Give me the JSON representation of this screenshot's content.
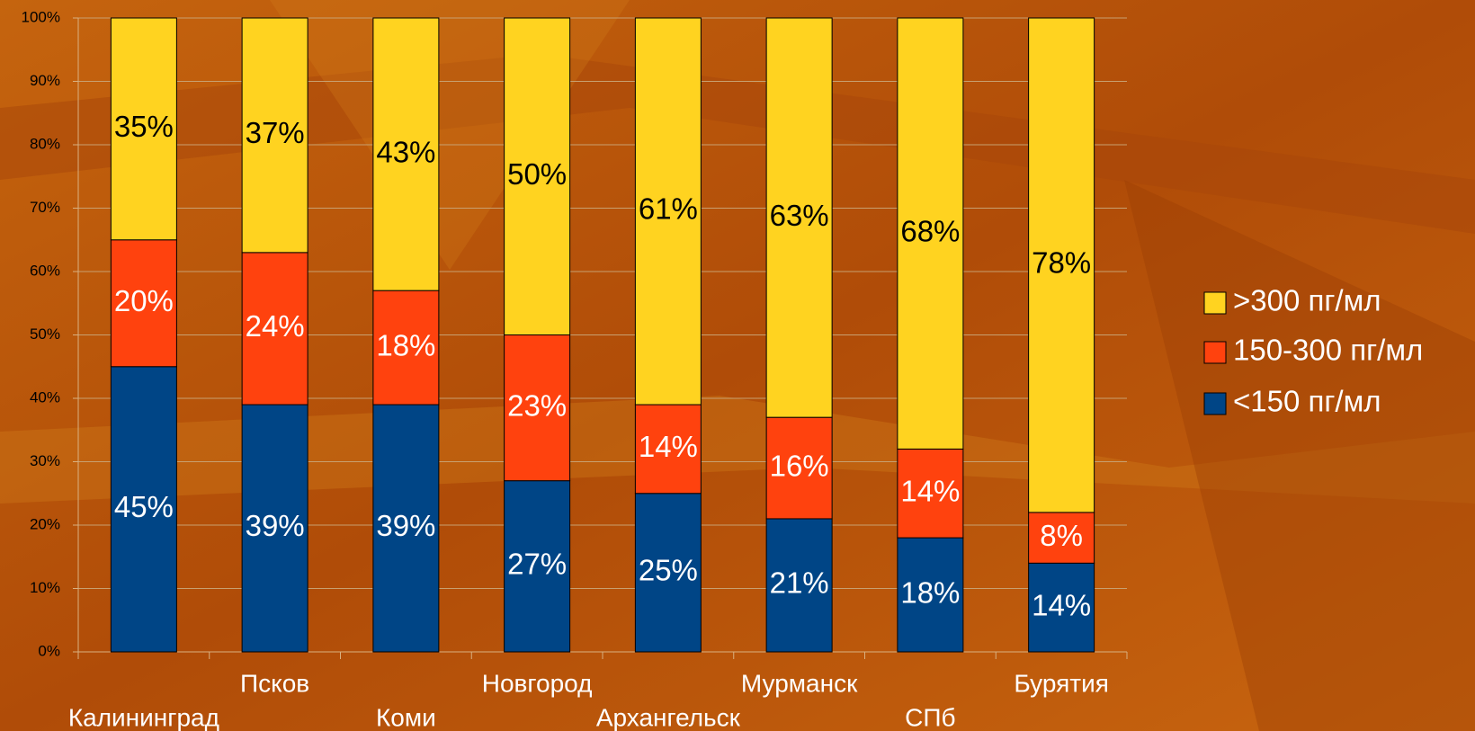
{
  "chart_data": {
    "type": "stacked_bar",
    "categories": [
      "Калининград",
      "Псков",
      "Коми",
      "Новгород",
      "Архангельск",
      "Мурманск",
      "СПб",
      "Бурятия"
    ],
    "series": [
      {
        "name": "<150 пг/мл",
        "color": "#004586",
        "values": [
          45,
          39,
          39,
          27,
          25,
          21,
          18,
          14
        ],
        "value_labels": [
          "45%",
          "39%",
          "39%",
          "27%",
          "25%",
          "21%",
          "18%",
          "14%"
        ]
      },
      {
        "name": "150-300 пг/мл",
        "color": "#ff420e",
        "values": [
          20,
          24,
          18,
          23,
          14,
          16,
          14,
          8
        ],
        "value_labels": [
          "20%",
          "24%",
          "18%",
          "23%",
          "14%",
          "16%",
          "14%",
          "8%"
        ]
      },
      {
        "name": ">300 пг/мл",
        "color": "#ffd320",
        "values": [
          35,
          37,
          43,
          50,
          61,
          63,
          68,
          78
        ],
        "value_labels": [
          "35%",
          "37%",
          "43%",
          "50%",
          "61%",
          "63%",
          "68%",
          "78%"
        ]
      }
    ],
    "ylim": [
      0,
      100
    ],
    "yticks": [
      {
        "value": 0,
        "label": "0%"
      },
      {
        "value": 10,
        "label": "10%"
      },
      {
        "value": 20,
        "label": "20%"
      },
      {
        "value": 30,
        "label": "30%"
      },
      {
        "value": 40,
        "label": "40%"
      },
      {
        "value": 50,
        "label": "50%"
      },
      {
        "value": 60,
        "label": "60%"
      },
      {
        "value": 70,
        "label": "70%"
      },
      {
        "value": 80,
        "label": "80%"
      },
      {
        "value": 90,
        "label": "90%"
      },
      {
        "value": 100,
        "label": "100%"
      }
    ],
    "grid": true,
    "legend": "right"
  }
}
